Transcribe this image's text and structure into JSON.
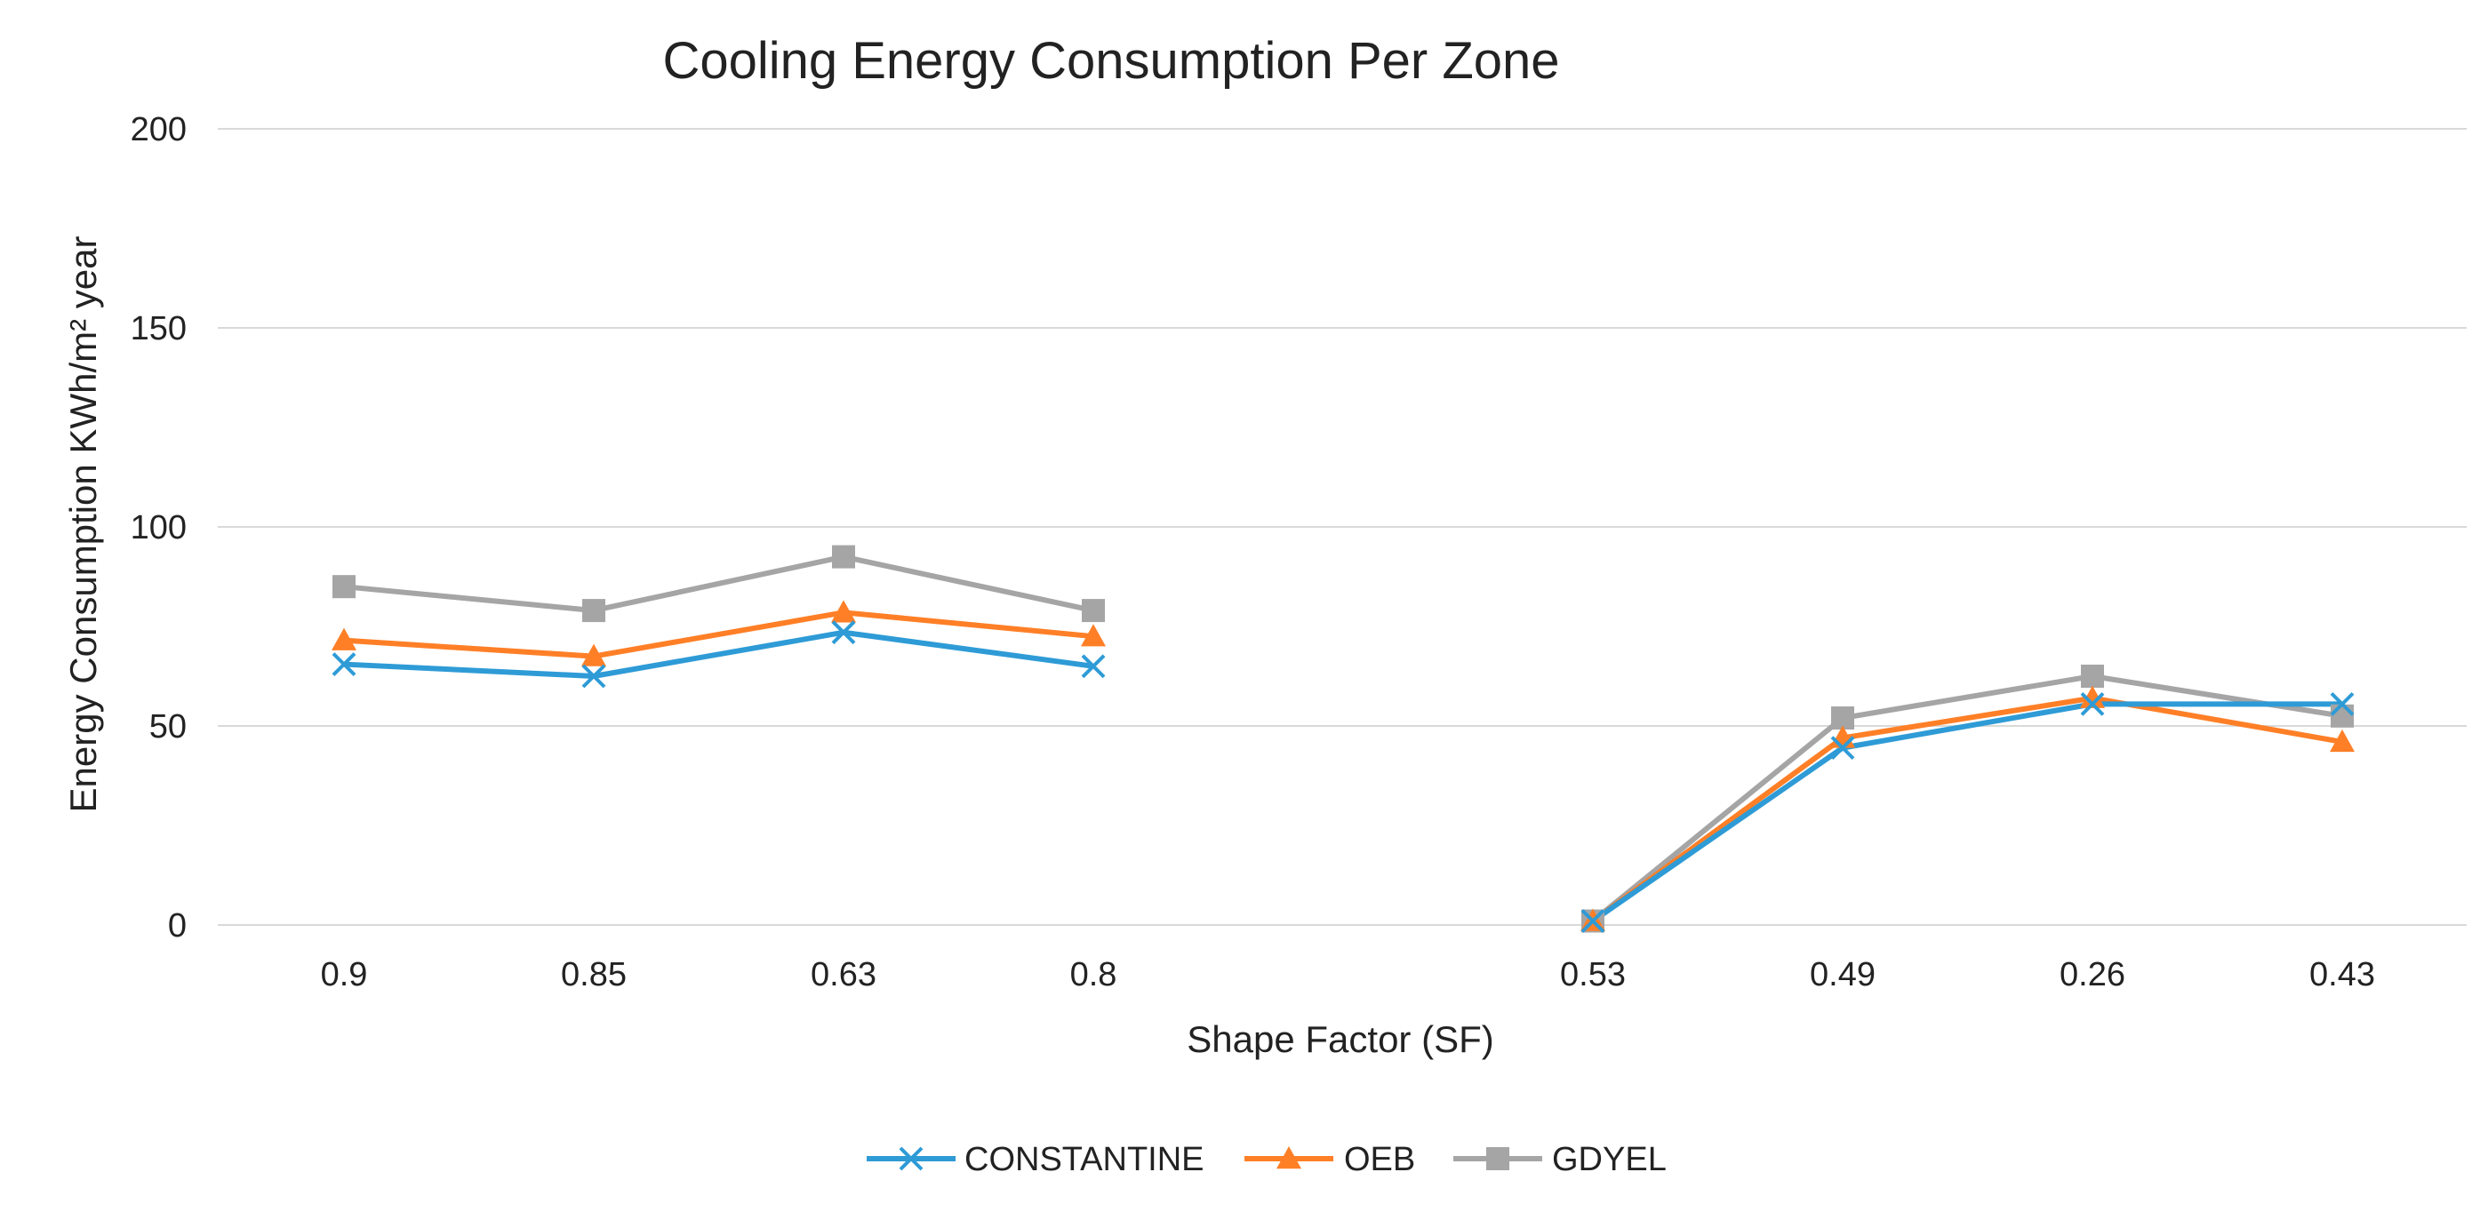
{
  "chart_data": {
    "type": "line",
    "title": "Cooling Energy Consumption Per Zone",
    "xlabel": "Shape Factor (SF)",
    "ylabel": "Energy Consumption KWh/m² year",
    "ylim": [
      0,
      200
    ],
    "yticks": [
      0,
      50,
      100,
      150,
      200
    ],
    "grid": true,
    "legend_position": "bottom",
    "categories": [
      "0.9",
      "0.85",
      "0.63",
      "0.8",
      "",
      "0.53",
      "0.49",
      "0.26",
      "0.43"
    ],
    "series": [
      {
        "name": "CONSTANTINE",
        "color": "#2E9BD6",
        "marker": "x",
        "values": [
          65.5,
          62.5,
          73.5,
          65,
          null,
          1,
          44.5,
          55.5,
          55.5
        ]
      },
      {
        "name": "OEB",
        "color": "#FF7F27",
        "marker": "triangle",
        "values": [
          71.5,
          67.5,
          78.5,
          72.5,
          null,
          1,
          47,
          57,
          46
        ]
      },
      {
        "name": "GDYEL",
        "color": "#A5A5A5",
        "marker": "square",
        "values": [
          85,
          79,
          92.5,
          79,
          null,
          1,
          52,
          62.5,
          52.5
        ]
      }
    ]
  }
}
